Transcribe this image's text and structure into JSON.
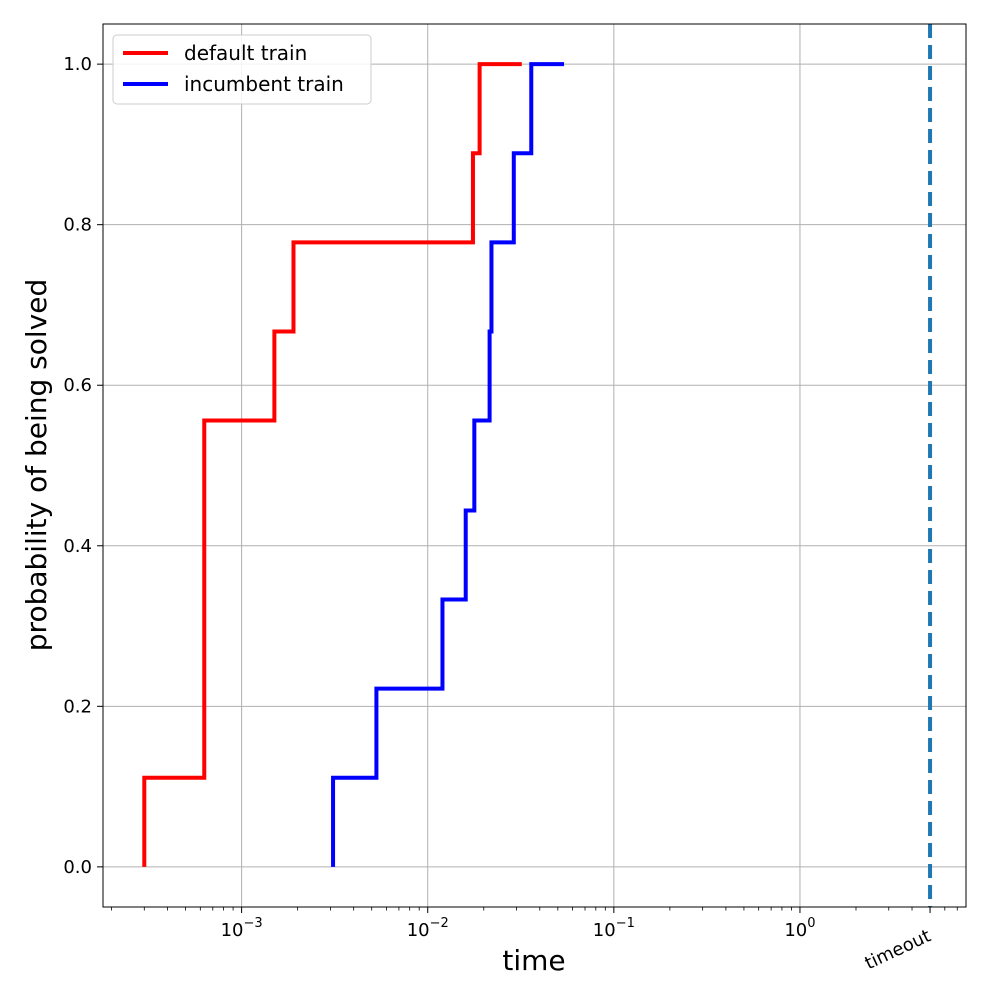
{
  "chart_data": {
    "type": "line",
    "step": "post",
    "xscale": "log",
    "xlabel": "time",
    "ylabel": "probability of being solved",
    "xlim": [
      0.00018,
      7.8
    ],
    "ylim": [
      -0.05,
      1.05
    ],
    "grid": true,
    "legend_position": "top-left",
    "x_ticks": [
      {
        "value": 0.001,
        "base": "10",
        "exp": "−3"
      },
      {
        "value": 0.01,
        "base": "10",
        "exp": "−2"
      },
      {
        "value": 0.1,
        "base": "10",
        "exp": "−1"
      },
      {
        "value": 1,
        "base": "10",
        "exp": "0"
      }
    ],
    "y_ticks": [
      "0.0",
      "0.2",
      "0.4",
      "0.6",
      "0.8",
      "1.0"
    ],
    "timeout": {
      "value": 5.0,
      "label": "timeout",
      "color": "#1f77b4"
    },
    "series": [
      {
        "name": "default train",
        "color": "#ff0000",
        "x": [
          0.0003,
          0.0003,
          0.00063,
          0.0015,
          0.0019,
          0.0175,
          0.019,
          0.032
        ],
        "y": [
          0.0,
          0.111,
          0.556,
          0.667,
          0.778,
          0.889,
          1.0,
          1.0
        ]
      },
      {
        "name": "incumbent train",
        "color": "#0000ff",
        "x": [
          0.0031,
          0.0031,
          0.0053,
          0.012,
          0.016,
          0.0178,
          0.0215,
          0.022,
          0.029,
          0.036,
          0.054
        ],
        "y": [
          0.0,
          0.111,
          0.222,
          0.333,
          0.444,
          0.556,
          0.667,
          0.778,
          0.889,
          1.0,
          1.0
        ]
      }
    ]
  }
}
